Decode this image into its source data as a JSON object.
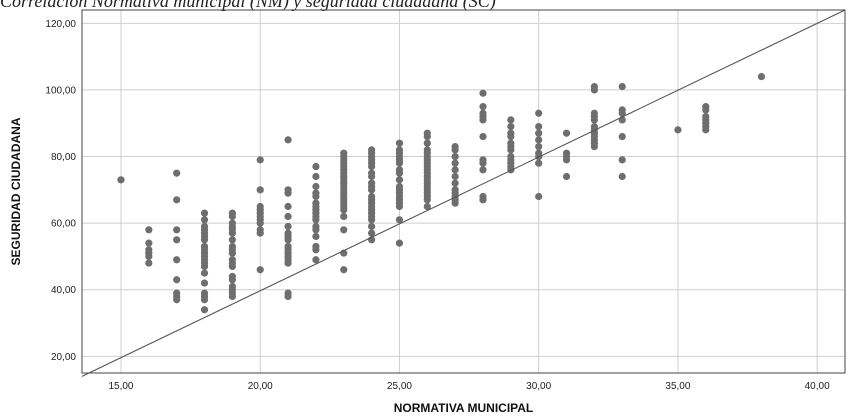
{
  "caption": "Correlación Normativa municipal (NM) y seguridad ciudadana (SC)",
  "colors": {
    "points": "#6e6e6e",
    "grid": "#cfcfcf",
    "axis": "#444444",
    "fitline": "#555555"
  },
  "chart_data": {
    "type": "scatter",
    "title": "",
    "xlabel": "NORMATIVA MUNICIPAL",
    "ylabel": "SEGURIDAD CIUDADANA",
    "xlim": [
      13.6,
      41.0
    ],
    "ylim": [
      15.0,
      124.0
    ],
    "xticks": [
      15,
      20,
      25,
      30,
      35,
      40
    ],
    "yticks": [
      20,
      40,
      60,
      80,
      100,
      120
    ],
    "xtick_labels": [
      "15,00",
      "20,00",
      "25,00",
      "30,00",
      "35,00",
      "40,00"
    ],
    "ytick_labels": [
      "20,00",
      "40,00",
      "60,00",
      "80,00",
      "100,00",
      "120,00"
    ],
    "grid": true,
    "fit_line": {
      "x": [
        13.6,
        41.0
      ],
      "y": [
        14.0,
        124.0
      ]
    },
    "points": [
      [
        15,
        73
      ],
      [
        16,
        48
      ],
      [
        16,
        50
      ],
      [
        16,
        51
      ],
      [
        16,
        52
      ],
      [
        16,
        54
      ],
      [
        16,
        58
      ],
      [
        17,
        37
      ],
      [
        17,
        38
      ],
      [
        17,
        39
      ],
      [
        17,
        43
      ],
      [
        17,
        49
      ],
      [
        17,
        55
      ],
      [
        17,
        58
      ],
      [
        17,
        67
      ],
      [
        17,
        75
      ],
      [
        18,
        34
      ],
      [
        18,
        37
      ],
      [
        18,
        38
      ],
      [
        18,
        39
      ],
      [
        18,
        42
      ],
      [
        18,
        45
      ],
      [
        18,
        47
      ],
      [
        18,
        48
      ],
      [
        18,
        49
      ],
      [
        18,
        50
      ],
      [
        18,
        51
      ],
      [
        18,
        52
      ],
      [
        18,
        53
      ],
      [
        18,
        55
      ],
      [
        18,
        56
      ],
      [
        18,
        57
      ],
      [
        18,
        58
      ],
      [
        18,
        59
      ],
      [
        18,
        61
      ],
      [
        18,
        63
      ],
      [
        19,
        38
      ],
      [
        19,
        39
      ],
      [
        19,
        40
      ],
      [
        19,
        41
      ],
      [
        19,
        43
      ],
      [
        19,
        44
      ],
      [
        19,
        47
      ],
      [
        19,
        48
      ],
      [
        19,
        49
      ],
      [
        19,
        51
      ],
      [
        19,
        52
      ],
      [
        19,
        53
      ],
      [
        19,
        55
      ],
      [
        19,
        57
      ],
      [
        19,
        58
      ],
      [
        19,
        59
      ],
      [
        19,
        60
      ],
      [
        19,
        62
      ],
      [
        19,
        63
      ],
      [
        20,
        46
      ],
      [
        20,
        57
      ],
      [
        20,
        58
      ],
      [
        20,
        60
      ],
      [
        20,
        61
      ],
      [
        20,
        62
      ],
      [
        20,
        63
      ],
      [
        20,
        64
      ],
      [
        20,
        65
      ],
      [
        20,
        70
      ],
      [
        20,
        79
      ],
      [
        21,
        38
      ],
      [
        21,
        39
      ],
      [
        21,
        48
      ],
      [
        21,
        49
      ],
      [
        21,
        50
      ],
      [
        21,
        51
      ],
      [
        21,
        52
      ],
      [
        21,
        53
      ],
      [
        21,
        55
      ],
      [
        21,
        56
      ],
      [
        21,
        57
      ],
      [
        21,
        59
      ],
      [
        21,
        62
      ],
      [
        21,
        65
      ],
      [
        21,
        69
      ],
      [
        21,
        70
      ],
      [
        21,
        85
      ],
      [
        22,
        49
      ],
      [
        22,
        52
      ],
      [
        22,
        53
      ],
      [
        22,
        56
      ],
      [
        22,
        58
      ],
      [
        22,
        59
      ],
      [
        22,
        61
      ],
      [
        22,
        62
      ],
      [
        22,
        63
      ],
      [
        22,
        64
      ],
      [
        22,
        65
      ],
      [
        22,
        66
      ],
      [
        22,
        68
      ],
      [
        22,
        69
      ],
      [
        22,
        71
      ],
      [
        22,
        74
      ],
      [
        22,
        77
      ],
      [
        23,
        46
      ],
      [
        23,
        51
      ],
      [
        23,
        58
      ],
      [
        23,
        62
      ],
      [
        23,
        64
      ],
      [
        23,
        65
      ],
      [
        23,
        66
      ],
      [
        23,
        67
      ],
      [
        23,
        68
      ],
      [
        23,
        69
      ],
      [
        23,
        70
      ],
      [
        23,
        71
      ],
      [
        23,
        72
      ],
      [
        23,
        73
      ],
      [
        23,
        74
      ],
      [
        23,
        75
      ],
      [
        23,
        76
      ],
      [
        23,
        77
      ],
      [
        23,
        78
      ],
      [
        23,
        79
      ],
      [
        23,
        80
      ],
      [
        23,
        81
      ],
      [
        24,
        55
      ],
      [
        24,
        57
      ],
      [
        24,
        59
      ],
      [
        24,
        61
      ],
      [
        24,
        62
      ],
      [
        24,
        63
      ],
      [
        24,
        64
      ],
      [
        24,
        65
      ],
      [
        24,
        66
      ],
      [
        24,
        67
      ],
      [
        24,
        68
      ],
      [
        24,
        70
      ],
      [
        24,
        71
      ],
      [
        24,
        72
      ],
      [
        24,
        74
      ],
      [
        24,
        75
      ],
      [
        24,
        77
      ],
      [
        24,
        78
      ],
      [
        24,
        79
      ],
      [
        24,
        80
      ],
      [
        24,
        81
      ],
      [
        24,
        82
      ],
      [
        25,
        54
      ],
      [
        25,
        61
      ],
      [
        25,
        65
      ],
      [
        25,
        66
      ],
      [
        25,
        67
      ],
      [
        25,
        68
      ],
      [
        25,
        69
      ],
      [
        25,
        70
      ],
      [
        25,
        71
      ],
      [
        25,
        73
      ],
      [
        25,
        75
      ],
      [
        25,
        76
      ],
      [
        25,
        78
      ],
      [
        25,
        79
      ],
      [
        25,
        80
      ],
      [
        25,
        81
      ],
      [
        25,
        82
      ],
      [
        25,
        84
      ],
      [
        26,
        65
      ],
      [
        26,
        67
      ],
      [
        26,
        68
      ],
      [
        26,
        69
      ],
      [
        26,
        70
      ],
      [
        26,
        71
      ],
      [
        26,
        72
      ],
      [
        26,
        73
      ],
      [
        26,
        74
      ],
      [
        26,
        75
      ],
      [
        26,
        76
      ],
      [
        26,
        77
      ],
      [
        26,
        78
      ],
      [
        26,
        79
      ],
      [
        26,
        80
      ],
      [
        26,
        81
      ],
      [
        26,
        82
      ],
      [
        26,
        84
      ],
      [
        26,
        86
      ],
      [
        26,
        87
      ],
      [
        27,
        66
      ],
      [
        27,
        67
      ],
      [
        27,
        68
      ],
      [
        27,
        69
      ],
      [
        27,
        70
      ],
      [
        27,
        72
      ],
      [
        27,
        74
      ],
      [
        27,
        76
      ],
      [
        27,
        78
      ],
      [
        27,
        80
      ],
      [
        27,
        82
      ],
      [
        27,
        83
      ],
      [
        28,
        67
      ],
      [
        28,
        68
      ],
      [
        28,
        76
      ],
      [
        28,
        78
      ],
      [
        28,
        79
      ],
      [
        28,
        86
      ],
      [
        28,
        91
      ],
      [
        28,
        92
      ],
      [
        28,
        93
      ],
      [
        28,
        95
      ],
      [
        28,
        99
      ],
      [
        29,
        76
      ],
      [
        29,
        77
      ],
      [
        29,
        78
      ],
      [
        29,
        79
      ],
      [
        29,
        80
      ],
      [
        29,
        82
      ],
      [
        29,
        83
      ],
      [
        29,
        84
      ],
      [
        29,
        86
      ],
      [
        29,
        87
      ],
      [
        29,
        89
      ],
      [
        29,
        91
      ],
      [
        30,
        68
      ],
      [
        30,
        78
      ],
      [
        30,
        80
      ],
      [
        30,
        81
      ],
      [
        30,
        83
      ],
      [
        30,
        85
      ],
      [
        30,
        87
      ],
      [
        30,
        89
      ],
      [
        30,
        93
      ],
      [
        31,
        74
      ],
      [
        31,
        79
      ],
      [
        31,
        80
      ],
      [
        31,
        81
      ],
      [
        31,
        87
      ],
      [
        32,
        83
      ],
      [
        32,
        84
      ],
      [
        32,
        85
      ],
      [
        32,
        86
      ],
      [
        32,
        87
      ],
      [
        32,
        88
      ],
      [
        32,
        89
      ],
      [
        32,
        91
      ],
      [
        32,
        92
      ],
      [
        32,
        93
      ],
      [
        32,
        100
      ],
      [
        32,
        101
      ],
      [
        33,
        74
      ],
      [
        33,
        79
      ],
      [
        33,
        86
      ],
      [
        33,
        91
      ],
      [
        33,
        93
      ],
      [
        33,
        94
      ],
      [
        33,
        101
      ],
      [
        35,
        88
      ],
      [
        36,
        88
      ],
      [
        36,
        89
      ],
      [
        36,
        90
      ],
      [
        36,
        91
      ],
      [
        36,
        92
      ],
      [
        36,
        94
      ],
      [
        36,
        95
      ],
      [
        38,
        104
      ]
    ]
  }
}
